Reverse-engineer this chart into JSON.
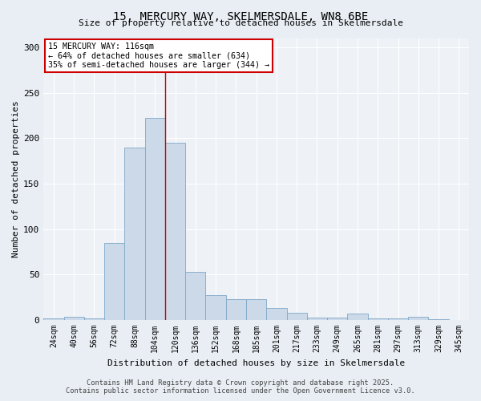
{
  "title1": "15, MERCURY WAY, SKELMERSDALE, WN8 6BE",
  "title2": "Size of property relative to detached houses in Skelmersdale",
  "xlabel": "Distribution of detached houses by size in Skelmersdale",
  "ylabel": "Number of detached properties",
  "categories": [
    "24sqm",
    "40sqm",
    "56sqm",
    "72sqm",
    "88sqm",
    "104sqm",
    "120sqm",
    "136sqm",
    "152sqm",
    "168sqm",
    "185sqm",
    "201sqm",
    "217sqm",
    "233sqm",
    "249sqm",
    "265sqm",
    "281sqm",
    "297sqm",
    "313sqm",
    "329sqm",
    "345sqm"
  ],
  "values": [
    2,
    4,
    2,
    85,
    190,
    222,
    195,
    53,
    27,
    23,
    23,
    13,
    8,
    3,
    3,
    7,
    2,
    2,
    4,
    1,
    0
  ],
  "bar_color": "#ccd9e8",
  "bar_edge_color": "#7fa8c8",
  "bar_width": 1.0,
  "red_line_x": 5.5,
  "annotation_line1": "15 MERCURY WAY: 116sqm",
  "annotation_line2": "← 64% of detached houses are smaller (634)",
  "annotation_line3": "35% of semi-detached houses are larger (344) →",
  "annotation_box_color": "#ffffff",
  "annotation_box_edge": "#cc0000",
  "ylim": [
    0,
    310
  ],
  "yticks": [
    0,
    50,
    100,
    150,
    200,
    250,
    300
  ],
  "footer": "Contains HM Land Registry data © Crown copyright and database right 2025.\nContains public sector information licensed under the Open Government Licence v3.0.",
  "bg_color": "#e8eef4",
  "plot_bg_color": "#eef2f7",
  "grid_color": "#ffffff",
  "title1_fontsize": 10,
  "title2_fontsize": 8,
  "axis_fontsize": 7,
  "ylabel_fontsize": 8
}
